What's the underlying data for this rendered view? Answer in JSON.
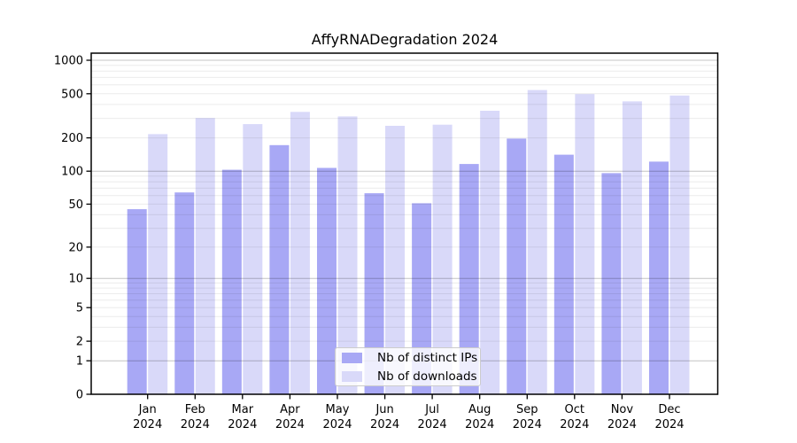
{
  "chart_data": {
    "type": "bar",
    "title": "AffyRNADegradation 2024",
    "categories": [
      "Jan 2024",
      "Feb 2024",
      "Mar 2024",
      "Apr 2024",
      "May 2024",
      "Jun 2024",
      "Jul 2024",
      "Aug 2024",
      "Sep 2024",
      "Oct 2024",
      "Nov 2024",
      "Dec 2024"
    ],
    "series": [
      {
        "name": "Nb of distinct IPs",
        "color": "#a8a8f5",
        "values": [
          45,
          64,
          103,
          172,
          107,
          63,
          51,
          116,
          197,
          141,
          96,
          122
        ]
      },
      {
        "name": "Nb of downloads",
        "color": "#d9d9f9",
        "values": [
          216,
          302,
          266,
          343,
          312,
          257,
          263,
          351,
          540,
          496,
          427,
          482
        ]
      }
    ],
    "y_ticks": [
      0,
      1,
      2,
      5,
      10,
      20,
      50,
      100,
      200,
      500,
      1000
    ],
    "y_scale": "log1p",
    "ylim": [
      0,
      1160
    ],
    "xlabel": "",
    "ylabel": "",
    "grid": "on",
    "legend_position": "lower-center",
    "colors": {
      "major_grid": "#c4c4c4",
      "minor_grid": "#ececec",
      "axis": "#000000",
      "background": "#ffffff"
    }
  }
}
